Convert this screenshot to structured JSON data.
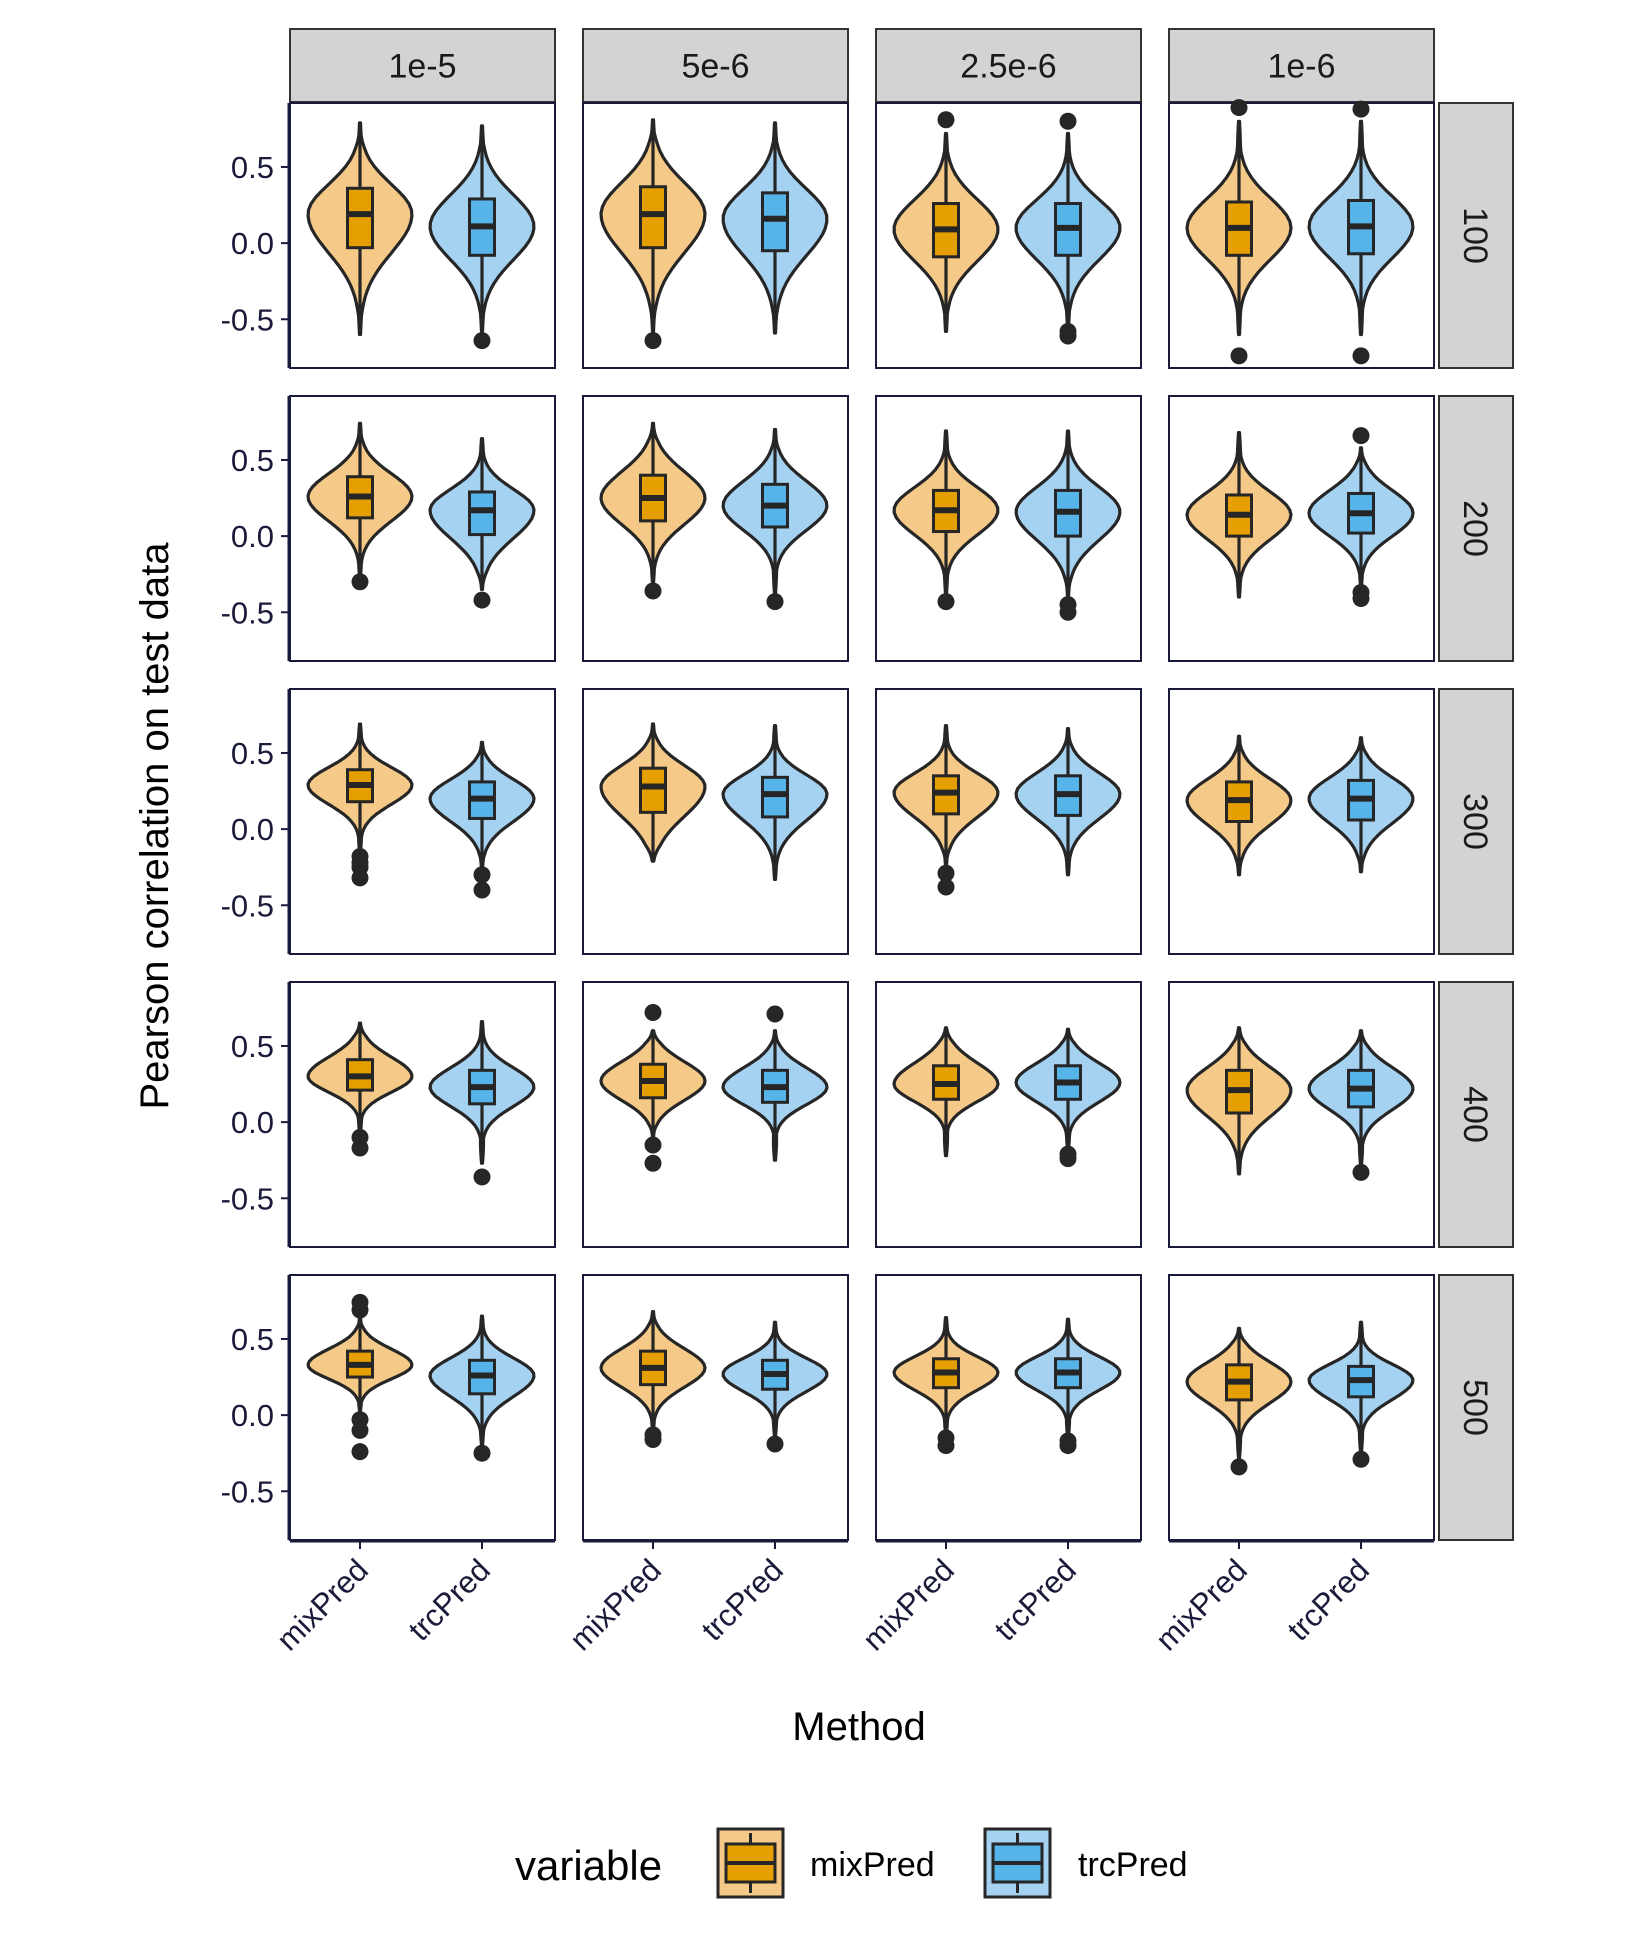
{
  "chart_data": {
    "type": "violin",
    "xlabel": "Method",
    "ylabel": "Pearson correlation on test data",
    "ylim": [
      -0.82,
      0.92
    ],
    "yticks": [
      -0.5,
      0.0,
      0.5
    ],
    "ytick_labels": [
      "-0.5",
      "0.0",
      "0.5"
    ],
    "grid": false,
    "legend_position": "bottom",
    "legend_title": "variable",
    "categories": [
      "mixPred",
      "trcPred"
    ],
    "col_facets": [
      "1e-5",
      "5e-6",
      "2.5e-6",
      "1e-6"
    ],
    "row_facets": [
      "100",
      "200",
      "300",
      "400",
      "500"
    ],
    "series": [
      {
        "name": "mixPred",
        "fill": "#F5C988",
        "box_fill": "#E69F00"
      },
      {
        "name": "trcPred",
        "fill": "#A6D2F2",
        "box_fill": "#56B4E9"
      }
    ],
    "panels": [
      [
        {
          "mixPred": {
            "min": -0.6,
            "q1": -0.03,
            "median": 0.19,
            "q3": 0.36,
            "max": 0.79,
            "outliers": []
          },
          "trcPred": {
            "min": -0.58,
            "q1": -0.08,
            "median": 0.11,
            "q3": 0.29,
            "max": 0.77,
            "outliers": [
              -0.64
            ]
          }
        },
        {
          "mixPred": {
            "min": -0.58,
            "q1": -0.03,
            "median": 0.19,
            "q3": 0.37,
            "max": 0.81,
            "outliers": [
              -0.64
            ]
          },
          "trcPred": {
            "min": -0.59,
            "q1": -0.05,
            "median": 0.16,
            "q3": 0.33,
            "max": 0.79,
            "outliers": []
          }
        },
        {
          "mixPred": {
            "min": -0.58,
            "q1": -0.09,
            "median": 0.09,
            "q3": 0.26,
            "max": 0.72,
            "outliers": [
              0.81
            ]
          },
          "trcPred": {
            "min": -0.56,
            "q1": -0.08,
            "median": 0.1,
            "q3": 0.26,
            "max": 0.72,
            "outliers": [
              0.8,
              -0.58,
              -0.61
            ]
          }
        },
        {
          "mixPred": {
            "min": -0.6,
            "q1": -0.08,
            "median": 0.1,
            "q3": 0.27,
            "max": 0.8,
            "outliers": [
              0.89,
              -0.74
            ]
          },
          "trcPred": {
            "min": -0.6,
            "q1": -0.07,
            "median": 0.11,
            "q3": 0.28,
            "max": 0.8,
            "outliers": [
              0.88,
              -0.74
            ]
          }
        }
      ],
      [
        {
          "mixPred": {
            "min": -0.27,
            "q1": 0.12,
            "median": 0.26,
            "q3": 0.39,
            "max": 0.74,
            "outliers": [
              -0.3
            ]
          },
          "trcPred": {
            "min": -0.35,
            "q1": 0.01,
            "median": 0.17,
            "q3": 0.29,
            "max": 0.64,
            "outliers": [
              -0.42
            ]
          }
        },
        {
          "mixPred": {
            "min": -0.31,
            "q1": 0.1,
            "median": 0.25,
            "q3": 0.4,
            "max": 0.74,
            "outliers": [
              -0.36
            ]
          },
          "trcPred": {
            "min": -0.38,
            "q1": 0.06,
            "median": 0.2,
            "q3": 0.34,
            "max": 0.7,
            "outliers": [
              -0.43
            ]
          }
        },
        {
          "mixPred": {
            "min": -0.38,
            "q1": 0.03,
            "median": 0.17,
            "q3": 0.3,
            "max": 0.69,
            "outliers": [
              -0.43
            ]
          },
          "trcPred": {
            "min": -0.4,
            "q1": 0.0,
            "median": 0.16,
            "q3": 0.3,
            "max": 0.69,
            "outliers": [
              -0.45,
              -0.5
            ]
          }
        },
        {
          "mixPred": {
            "min": -0.4,
            "q1": 0.0,
            "median": 0.14,
            "q3": 0.27,
            "max": 0.68,
            "outliers": []
          },
          "trcPred": {
            "min": -0.33,
            "q1": 0.02,
            "median": 0.15,
            "q3": 0.28,
            "max": 0.58,
            "outliers": [
              0.66,
              -0.37,
              -0.41
            ]
          }
        }
      ],
      [
        {
          "mixPred": {
            "min": -0.15,
            "q1": 0.18,
            "median": 0.29,
            "q3": 0.39,
            "max": 0.69,
            "outliers": [
              -0.18,
              -0.22,
              -0.25,
              -0.32
            ]
          },
          "trcPred": {
            "min": -0.26,
            "q1": 0.07,
            "median": 0.2,
            "q3": 0.31,
            "max": 0.57,
            "outliers": [
              -0.3,
              -0.4
            ]
          }
        },
        {
          "mixPred": {
            "min": -0.21,
            "q1": 0.11,
            "median": 0.28,
            "q3": 0.4,
            "max": 0.69,
            "outliers": []
          },
          "trcPred": {
            "min": -0.33,
            "q1": 0.08,
            "median": 0.23,
            "q3": 0.34,
            "max": 0.68,
            "outliers": []
          }
        },
        {
          "mixPred": {
            "min": -0.24,
            "q1": 0.1,
            "median": 0.24,
            "q3": 0.35,
            "max": 0.68,
            "outliers": [
              -0.29,
              -0.38
            ]
          },
          "trcPred": {
            "min": -0.3,
            "q1": 0.09,
            "median": 0.23,
            "q3": 0.35,
            "max": 0.66,
            "outliers": []
          }
        },
        {
          "mixPred": {
            "min": -0.3,
            "q1": 0.05,
            "median": 0.19,
            "q3": 0.31,
            "max": 0.61,
            "outliers": []
          },
          "trcPred": {
            "min": -0.28,
            "q1": 0.06,
            "median": 0.2,
            "q3": 0.32,
            "max": 0.6,
            "outliers": []
          }
        }
      ],
      [
        {
          "mixPred": {
            "min": -0.07,
            "q1": 0.21,
            "median": 0.3,
            "q3": 0.41,
            "max": 0.65,
            "outliers": [
              -0.1,
              -0.17
            ]
          },
          "trcPred": {
            "min": -0.27,
            "q1": 0.12,
            "median": 0.23,
            "q3": 0.34,
            "max": 0.66,
            "outliers": [
              -0.36
            ]
          }
        },
        {
          "mixPred": {
            "min": -0.1,
            "q1": 0.16,
            "median": 0.27,
            "q3": 0.38,
            "max": 0.6,
            "outliers": [
              0.72,
              -0.15,
              -0.27
            ]
          },
          "trcPred": {
            "min": -0.25,
            "q1": 0.13,
            "median": 0.23,
            "q3": 0.34,
            "max": 0.6,
            "outliers": [
              0.71
            ]
          }
        },
        {
          "mixPred": {
            "min": -0.22,
            "q1": 0.15,
            "median": 0.25,
            "q3": 0.37,
            "max": 0.62,
            "outliers": []
          },
          "trcPred": {
            "min": -0.18,
            "q1": 0.15,
            "median": 0.26,
            "q3": 0.37,
            "max": 0.61,
            "outliers": [
              -0.21,
              -0.24
            ]
          }
        },
        {
          "mixPred": {
            "min": -0.34,
            "q1": 0.06,
            "median": 0.21,
            "q3": 0.34,
            "max": 0.62,
            "outliers": []
          },
          "trcPred": {
            "min": -0.28,
            "q1": 0.1,
            "median": 0.22,
            "q3": 0.34,
            "max": 0.6,
            "outliers": [
              -0.33
            ]
          }
        }
      ],
      [
        {
          "mixPred": {
            "min": 0.03,
            "q1": 0.25,
            "median": 0.33,
            "q3": 0.42,
            "max": 0.64,
            "outliers": [
              0.74,
              0.69,
              -0.03,
              -0.1,
              -0.24
            ]
          },
          "trcPred": {
            "min": -0.2,
            "q1": 0.14,
            "median": 0.26,
            "q3": 0.36,
            "max": 0.65,
            "outliers": [
              -0.25
            ]
          }
        },
        {
          "mixPred": {
            "min": -0.1,
            "q1": 0.2,
            "median": 0.31,
            "q3": 0.42,
            "max": 0.68,
            "outliers": [
              -0.13,
              -0.16
            ]
          },
          "trcPred": {
            "min": -0.14,
            "q1": 0.17,
            "median": 0.27,
            "q3": 0.36,
            "max": 0.61,
            "outliers": [
              -0.19
            ]
          }
        },
        {
          "mixPred": {
            "min": -0.12,
            "q1": 0.18,
            "median": 0.28,
            "q3": 0.37,
            "max": 0.64,
            "outliers": [
              -0.15,
              -0.2
            ]
          },
          "trcPred": {
            "min": -0.14,
            "q1": 0.18,
            "median": 0.28,
            "q3": 0.37,
            "max": 0.63,
            "outliers": [
              -0.17,
              -0.2
            ]
          }
        },
        {
          "mixPred": {
            "min": -0.28,
            "q1": 0.1,
            "median": 0.22,
            "q3": 0.33,
            "max": 0.57,
            "outliers": [
              -0.34
            ]
          },
          "trcPred": {
            "min": -0.24,
            "q1": 0.12,
            "median": 0.23,
            "q3": 0.32,
            "max": 0.61,
            "outliers": [
              -0.29
            ]
          }
        }
      ]
    ]
  }
}
